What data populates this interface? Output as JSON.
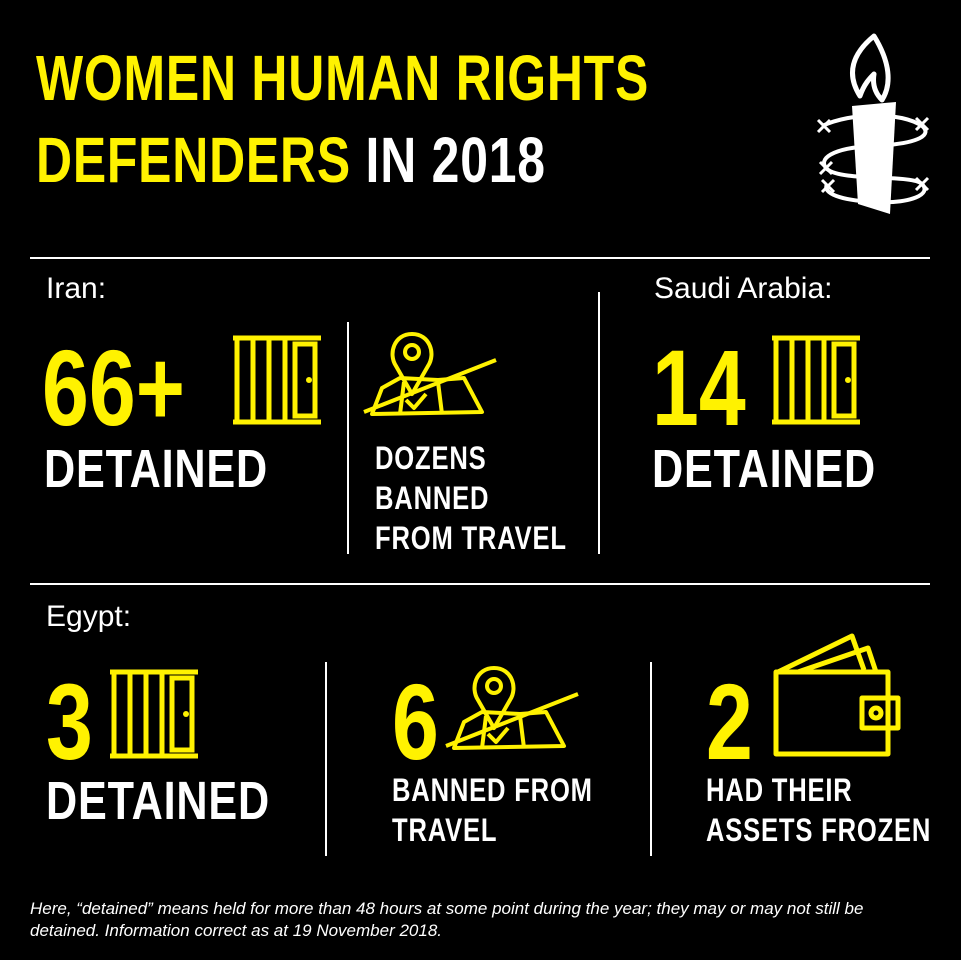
{
  "title": {
    "line1": "WOMEN HUMAN RIGHTS",
    "line2_yellow": "DEFENDERS",
    "line2_white": "IN 2018"
  },
  "colors": {
    "accent": "#fff200",
    "text": "#ffffff",
    "background": "#000000"
  },
  "logo": {
    "icon": "candle-barbed-wire-icon"
  },
  "iran": {
    "country": "Iran:",
    "detained_value": "66+",
    "detained_label": "DETAINED",
    "travel_line1": "DOZENS",
    "travel_line2": "BANNED",
    "travel_line3": "FROM TRAVEL"
  },
  "saudi": {
    "country": "Saudi Arabia:",
    "detained_value": "14",
    "detained_label": "DETAINED"
  },
  "egypt": {
    "country": "Egypt:",
    "detained_value": "3",
    "detained_label": "DETAINED",
    "travel_value": "6",
    "travel_line1": "BANNED FROM",
    "travel_line2": "TRAVEL",
    "assets_value": "2",
    "assets_line1": "HAD THEIR",
    "assets_line2": "ASSETS FROZEN"
  },
  "footnote": "Here, “detained” means held for more than 48 hours at some point during the year; they may or may not still be detained. Information correct as at 19 November 2018."
}
